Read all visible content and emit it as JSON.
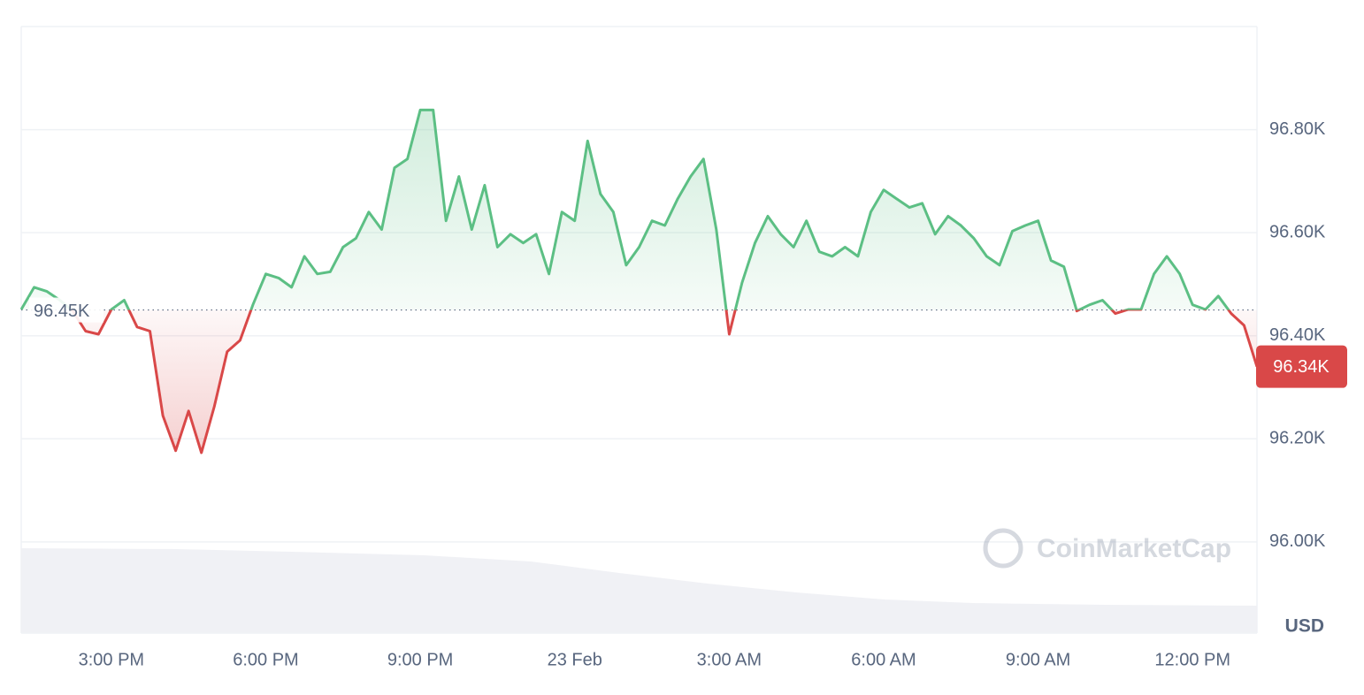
{
  "chart_data": {
    "type": "line",
    "categories": [
      null,
      null,
      null,
      null,
      null,
      null,
      null,
      "3:00 PM",
      null,
      null,
      null,
      null,
      null,
      null,
      null,
      null,
      null,
      null,
      null,
      "6:00 PM",
      null,
      null,
      null,
      null,
      null,
      null,
      null,
      null,
      null,
      null,
      null,
      "9:00 PM",
      null,
      null,
      null,
      null,
      null,
      null,
      null,
      null,
      null,
      null,
      null,
      "23 Feb",
      null,
      null,
      null,
      null,
      null,
      null,
      null,
      null,
      null,
      null,
      null,
      "3:00 AM",
      null,
      null,
      null,
      null,
      null,
      null,
      null,
      null,
      null,
      null,
      null,
      "6:00 AM",
      null,
      null,
      null,
      null,
      null,
      null,
      null,
      null,
      null,
      null,
      null,
      "9:00 AM",
      null,
      null,
      null,
      null,
      null,
      null,
      null,
      null,
      null,
      null,
      null,
      "12:00 PM",
      null,
      null,
      null,
      null,
      null
    ],
    "values": [
      96451,
      96494,
      96486,
      96469,
      96448,
      96409,
      96403,
      96451,
      96469,
      96417,
      96409,
      96245,
      96177,
      96254,
      96173,
      96263,
      96369,
      96391,
      96460,
      96520,
      96512,
      96494,
      96554,
      96520,
      96524,
      96572,
      96589,
      96640,
      96606,
      96726,
      96743,
      96838,
      96838,
      96623,
      96709,
      96606,
      96692,
      96572,
      96597,
      96580,
      96597,
      96520,
      96640,
      96623,
      96778,
      96675,
      96640,
      96537,
      96572,
      96623,
      96614,
      96666,
      96709,
      96743,
      96606,
      96403,
      96503,
      96580,
      96632,
      96597,
      96572,
      96623,
      96563,
      96554,
      96572,
      96554,
      96640,
      96683,
      96666,
      96649,
      96657,
      96597,
      96632,
      96614,
      96589,
      96554,
      96537,
      96603,
      96614,
      96623,
      96546,
      96534,
      96448,
      96460,
      96469,
      96443,
      96451,
      96451,
      96520,
      96554,
      96520,
      96460,
      96451,
      96477,
      96443,
      96420,
      96340
    ],
    "up_color": "#5cbf84",
    "down_color": "#d94848",
    "baseline": {
      "value": 96450,
      "label": "96.45K"
    },
    "current_price": {
      "value": 96340,
      "label": "96.34K"
    },
    "ylim": [
      95823,
      97000
    ],
    "yticks": [
      {
        "value": 96000,
        "label": "96.00K"
      },
      {
        "value": 96200,
        "label": "96.20K"
      },
      {
        "value": 96400,
        "label": "96.40K"
      },
      {
        "value": 96600,
        "label": "96.60K"
      },
      {
        "value": 96800,
        "label": "96.80K"
      }
    ],
    "y_unit": "USD",
    "watermark": "CoinMarketCap",
    "grid": true
  }
}
